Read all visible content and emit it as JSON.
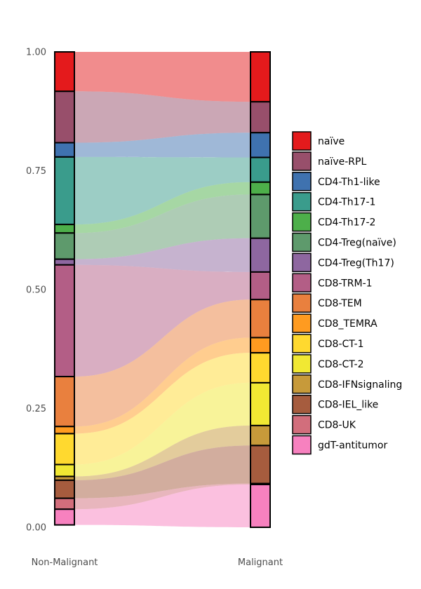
{
  "chart_data": {
    "type": "alluvial",
    "ylim": [
      0,
      1
    ],
    "yticks": [
      "0.00",
      "0.25",
      "0.50",
      "0.75",
      "1.00"
    ],
    "categories": [
      "Non-Malignant",
      "Malignant"
    ],
    "series": [
      {
        "name": "naïve",
        "color": "#E41A1C",
        "values": [
          0.083,
          0.105
        ]
      },
      {
        "name": "naïve-RPL",
        "color": "#984F6B",
        "values": [
          0.108,
          0.065
        ]
      },
      {
        "name": "CD4-Th1-like",
        "color": "#3F72AF",
        "values": [
          0.03,
          0.052
        ]
      },
      {
        "name": "CD4-Th17-1",
        "color": "#3A9C8C",
        "values": [
          0.142,
          0.052
        ]
      },
      {
        "name": "CD4-Th17-2",
        "color": "#4DAF4A",
        "values": [
          0.018,
          0.026
        ]
      },
      {
        "name": "CD4-Treg(naïve)",
        "color": "#5E9A6C",
        "values": [
          0.055,
          0.092
        ]
      },
      {
        "name": "CD4-Treg(Th17)",
        "color": "#8E67A0",
        "values": [
          0.012,
          0.071
        ]
      },
      {
        "name": "CD8-TRM-1",
        "color": "#B35E86",
        "values": [
          0.235,
          0.058
        ]
      },
      {
        "name": "CD8-TEM",
        "color": "#E9803E",
        "values": [
          0.105,
          0.08
        ]
      },
      {
        "name": "CD8_TEMRA",
        "color": "#FF9B20",
        "values": [
          0.015,
          0.032
        ]
      },
      {
        "name": "CD8-CT-1",
        "color": "#FFD92F",
        "values": [
          0.065,
          0.063
        ]
      },
      {
        "name": "CD8-CT-2",
        "color": "#F1E833",
        "values": [
          0.025,
          0.09
        ]
      },
      {
        "name": "CD8-IFNsignaling",
        "color": "#C79A3A",
        "values": [
          0.008,
          0.042
        ]
      },
      {
        "name": "CD8-IEL_like",
        "color": "#A65C3E",
        "values": [
          0.038,
          0.08
        ]
      },
      {
        "name": "CD8-UK",
        "color": "#D26E7C",
        "values": [
          0.023,
          0.002
        ]
      },
      {
        "name": "gdT-antitumor",
        "color": "#F781BF",
        "values": [
          0.033,
          0.09
        ]
      }
    ]
  }
}
